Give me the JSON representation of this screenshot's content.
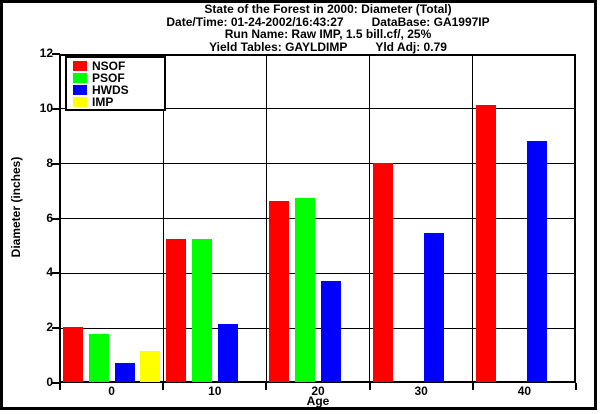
{
  "header": {
    "title": "State of the Forest in 2000: Diameter (Total)",
    "datetime_label": "Date/Time: 01-24-2002/16:43:27",
    "database_label": "DataBase: GA1997IP",
    "run_name": "Run Name: Raw IMP, 1.5 bill.cf/, 25%",
    "yield_tables_label": "Yield Tables: GAYLDIMP",
    "yield_adj_label": "Yld Adj: 0.79"
  },
  "chart_data": {
    "type": "bar",
    "title": "State of the Forest in 2000: Diameter (Total)",
    "xlabel": "Age",
    "ylabel": "Diameter (inches)",
    "ylim": [
      0,
      12
    ],
    "yticks": [
      0,
      2,
      4,
      6,
      8,
      10,
      12
    ],
    "grid": true,
    "legend_position": "top-left",
    "categories": [
      "0",
      "10",
      "20",
      "30",
      "40"
    ],
    "series": [
      {
        "name": "NSOF",
        "color": "#ff0000",
        "values": [
          2.0,
          5.2,
          6.6,
          8.0,
          10.1
        ]
      },
      {
        "name": "PSOF",
        "color": "#00ff00",
        "values": [
          1.75,
          5.2,
          6.7,
          null,
          null
        ]
      },
      {
        "name": "HWDS",
        "color": "#0000ff",
        "values": [
          0.7,
          2.1,
          3.7,
          5.45,
          8.8
        ]
      },
      {
        "name": "IMP",
        "color": "#ffff00",
        "values": [
          1.15,
          null,
          null,
          null,
          null
        ]
      }
    ]
  }
}
